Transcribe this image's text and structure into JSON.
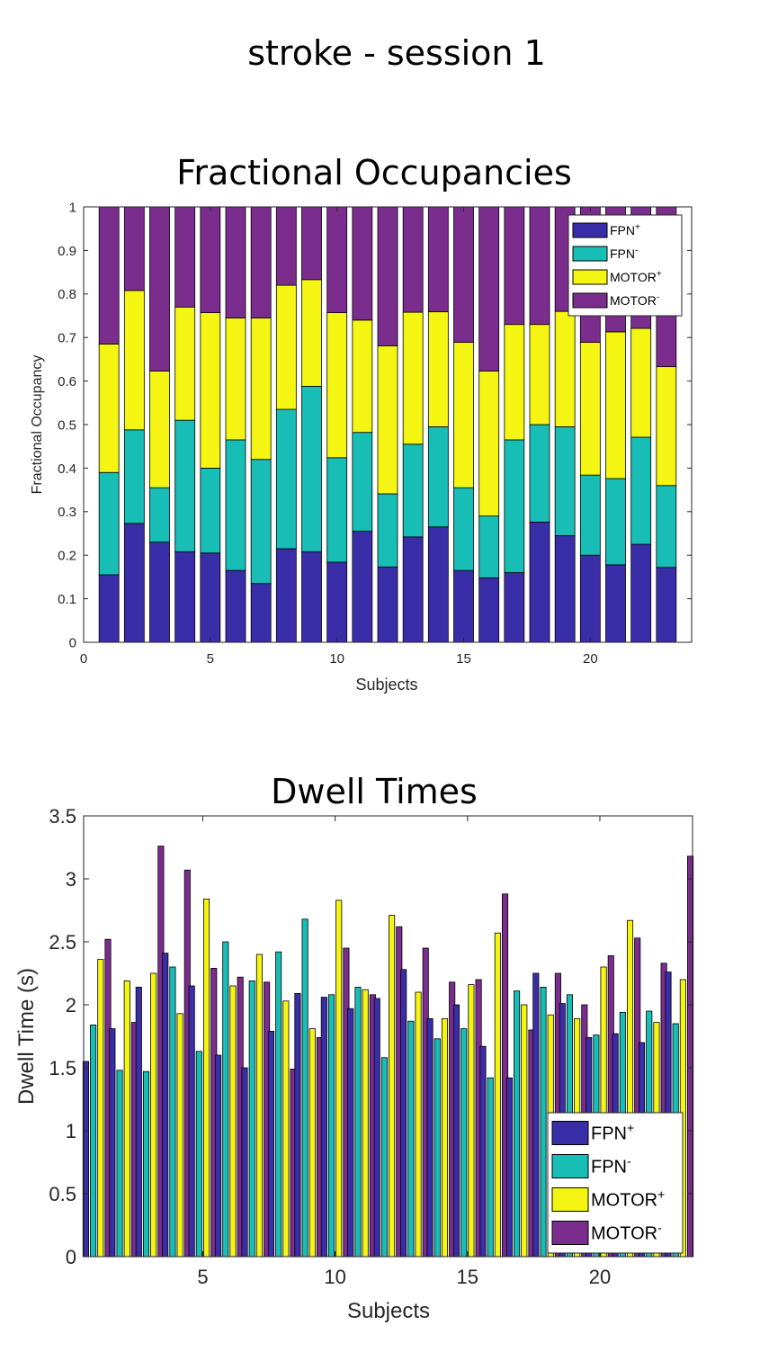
{
  "figure_title": "stroke - session 1",
  "chart_data": [
    {
      "type": "bar",
      "stacked": true,
      "title": "Fractional Occupancies",
      "xlabel": "Subjects",
      "ylabel": "Fractional Occupancy",
      "xlim": [
        0,
        24
      ],
      "ylim": [
        0,
        1
      ],
      "xticks": [
        0,
        5,
        10,
        15,
        20
      ],
      "yticks": [
        0,
        0.1,
        0.2,
        0.3,
        0.4,
        0.5,
        0.6,
        0.7,
        0.8,
        0.9,
        1
      ],
      "categories": [
        1,
        2,
        3,
        4,
        5,
        6,
        7,
        8,
        9,
        10,
        11,
        12,
        13,
        14,
        15,
        16,
        17,
        18,
        19,
        20,
        21,
        22,
        23
      ],
      "legend_position": "top-right",
      "grid": false,
      "series": [
        {
          "name": "FPN",
          "sup": "+",
          "color": "#3a2ea8",
          "values": [
            0.155,
            0.273,
            0.23,
            0.208,
            0.205,
            0.165,
            0.135,
            0.215,
            0.208,
            0.184,
            0.255,
            0.173,
            0.242,
            0.265,
            0.165,
            0.148,
            0.16,
            0.276,
            0.245,
            0.2,
            0.178,
            0.225,
            0.172
          ]
        },
        {
          "name": "FPN",
          "sup": "-",
          "color": "#18bdb5",
          "values": [
            0.235,
            0.215,
            0.125,
            0.302,
            0.195,
            0.3,
            0.285,
            0.32,
            0.38,
            0.24,
            0.227,
            0.168,
            0.213,
            0.23,
            0.19,
            0.142,
            0.305,
            0.224,
            0.25,
            0.184,
            0.198,
            0.246,
            0.188
          ]
        },
        {
          "name": "MOTOR",
          "sup": "+",
          "color": "#f5f514",
          "values": [
            0.295,
            0.32,
            0.268,
            0.26,
            0.357,
            0.28,
            0.325,
            0.285,
            0.245,
            0.333,
            0.258,
            0.34,
            0.303,
            0.264,
            0.334,
            0.333,
            0.265,
            0.23,
            0.265,
            0.305,
            0.337,
            0.25,
            0.273
          ]
        },
        {
          "name": "MOTOR",
          "sup": "-",
          "color": "#7b2d8e",
          "values": [
            0.315,
            0.192,
            0.377,
            0.23,
            0.243,
            0.255,
            0.255,
            0.18,
            0.167,
            0.243,
            0.26,
            0.319,
            0.242,
            0.241,
            0.311,
            0.377,
            0.27,
            0.27,
            0.24,
            0.311,
            0.287,
            0.279,
            0.367
          ]
        }
      ]
    },
    {
      "type": "bar",
      "stacked": false,
      "title": "Dwell Times",
      "xlabel": "Subjects",
      "ylabel": "Dwell Time (s)",
      "xlim": [
        0.5,
        23.5
      ],
      "ylim": [
        0,
        3.5
      ],
      "xticks": [
        5,
        10,
        15,
        20
      ],
      "yticks": [
        0,
        0.5,
        1,
        1.5,
        2,
        2.5,
        3,
        3.5
      ],
      "categories": [
        1,
        2,
        3,
        4,
        5,
        6,
        7,
        8,
        9,
        10,
        11,
        12,
        13,
        14,
        15,
        16,
        17,
        18,
        19,
        20,
        21,
        22,
        23
      ],
      "legend_position": "bottom-right",
      "grid": false,
      "series": [
        {
          "name": "FPN",
          "sup": "+",
          "color": "#3a2ea8",
          "values": [
            1.55,
            1.81,
            2.14,
            2.41,
            2.15,
            1.6,
            1.5,
            1.79,
            2.09,
            2.06,
            1.97,
            2.05,
            2.28,
            1.89,
            2.0,
            1.67,
            1.42,
            2.25,
            2.01,
            1.74,
            1.77,
            1.7,
            2.26
          ]
        },
        {
          "name": "FPN",
          "sup": "-",
          "color": "#18bdb5",
          "values": [
            1.84,
            1.48,
            1.47,
            2.3,
            1.63,
            2.5,
            2.19,
            2.42,
            2.68,
            2.08,
            2.14,
            1.58,
            1.87,
            1.73,
            1.81,
            1.42,
            2.11,
            2.14,
            2.08,
            1.76,
            1.94,
            1.95,
            1.85
          ]
        },
        {
          "name": "MOTOR",
          "sup": "+",
          "color": "#f5f514",
          "values": [
            2.36,
            2.19,
            2.25,
            1.93,
            2.84,
            2.15,
            2.4,
            2.03,
            1.81,
            2.83,
            2.12,
            2.71,
            2.1,
            1.89,
            2.16,
            2.57,
            2.0,
            1.92,
            1.89,
            2.3,
            2.67,
            1.86,
            2.2
          ]
        },
        {
          "name": "MOTOR",
          "sup": "-",
          "color": "#7b2d8e",
          "values": [
            2.52,
            1.86,
            3.26,
            3.07,
            2.29,
            2.22,
            2.18,
            1.49,
            1.74,
            2.45,
            2.08,
            2.62,
            2.45,
            2.18,
            2.2,
            2.88,
            1.8,
            2.25,
            2.0,
            2.39,
            2.53,
            2.33,
            3.18
          ]
        }
      ]
    }
  ]
}
